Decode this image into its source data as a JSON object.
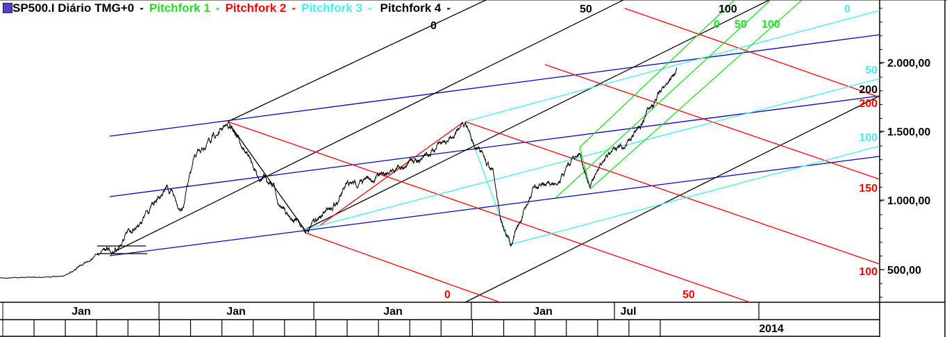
{
  "legend": {
    "symbol": "SP500.I Diário TMG+0",
    "items": [
      {
        "label": "Pitchfork 1",
        "color": "#22dd22"
      },
      {
        "label": "Pitchfork 2",
        "color": "#ff0000"
      },
      {
        "label": "Pitchfork 3",
        "color": "#44eeee"
      },
      {
        "label": "Pitchfork 4",
        "color": "#000000"
      }
    ],
    "sep": "-"
  },
  "chart_data": {
    "type": "line",
    "title": "SP500.I Diário TMG+0",
    "series": [
      {
        "name": "SP500.I",
        "color": "#000000"
      }
    ],
    "y_ticks": [
      "2.000,00",
      "1.500,00",
      "1.000,00",
      "500,00"
    ],
    "x_labels": [
      "Jan",
      "Jan",
      "Jan",
      "Jan",
      "Jul"
    ],
    "x_year_label": "2014",
    "level_labels": [
      {
        "text": "0",
        "color": "#000000"
      },
      {
        "text": "50",
        "color": "#000000"
      },
      {
        "text": "100",
        "color": "#000000"
      },
      {
        "text": "0",
        "color": "#22dd22"
      },
      {
        "text": "50",
        "color": "#22dd22"
      },
      {
        "text": "100",
        "color": "#22dd22"
      },
      {
        "text": "0",
        "color": "#44eeee"
      },
      {
        "text": "50",
        "color": "#44eeee"
      },
      {
        "text": "200",
        "color": "#000000"
      },
      {
        "text": "200",
        "color": "#ff0000"
      },
      {
        "text": "100",
        "color": "#44eeee"
      },
      {
        "text": "150",
        "color": "#ff0000"
      },
      {
        "text": "100",
        "color": "#ff0000"
      },
      {
        "text": "0",
        "color": "#ff0000"
      },
      {
        "text": "50",
        "color": "#ff0000"
      }
    ],
    "colors": {
      "blue": "#0000cc",
      "black": "#000000",
      "red": "#ff0000",
      "cyan": "#44eeee",
      "green": "#22dd22"
    }
  }
}
